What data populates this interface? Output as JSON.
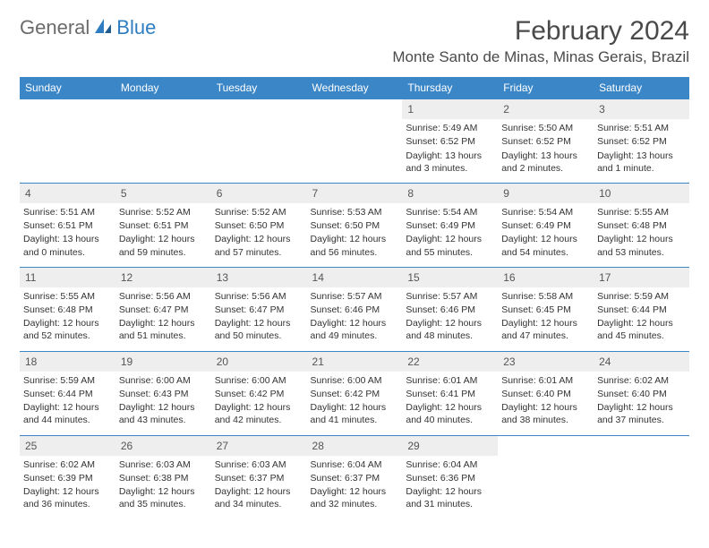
{
  "logo": {
    "text1": "General",
    "text2": "Blue"
  },
  "title": "February 2024",
  "location": "Monte Santo de Minas, Minas Gerais, Brazil",
  "colors": {
    "header_blue": "#3b86c7",
    "logo_blue": "#2f7dc0",
    "logo_grey": "#6b6b6b",
    "daynum_bg": "#eeeeee",
    "text": "#333333"
  },
  "day_headers": [
    "Sunday",
    "Monday",
    "Tuesday",
    "Wednesday",
    "Thursday",
    "Friday",
    "Saturday"
  ],
  "labels": {
    "sunrise": "Sunrise:",
    "sunset": "Sunset:",
    "daylight": "Daylight:"
  },
  "weeks": [
    [
      null,
      null,
      null,
      null,
      {
        "n": "1",
        "sr": "5:49 AM",
        "ss": "6:52 PM",
        "dl": "13 hours and 3 minutes."
      },
      {
        "n": "2",
        "sr": "5:50 AM",
        "ss": "6:52 PM",
        "dl": "13 hours and 2 minutes."
      },
      {
        "n": "3",
        "sr": "5:51 AM",
        "ss": "6:52 PM",
        "dl": "13 hours and 1 minute."
      }
    ],
    [
      {
        "n": "4",
        "sr": "5:51 AM",
        "ss": "6:51 PM",
        "dl": "13 hours and 0 minutes."
      },
      {
        "n": "5",
        "sr": "5:52 AM",
        "ss": "6:51 PM",
        "dl": "12 hours and 59 minutes."
      },
      {
        "n": "6",
        "sr": "5:52 AM",
        "ss": "6:50 PM",
        "dl": "12 hours and 57 minutes."
      },
      {
        "n": "7",
        "sr": "5:53 AM",
        "ss": "6:50 PM",
        "dl": "12 hours and 56 minutes."
      },
      {
        "n": "8",
        "sr": "5:54 AM",
        "ss": "6:49 PM",
        "dl": "12 hours and 55 minutes."
      },
      {
        "n": "9",
        "sr": "5:54 AM",
        "ss": "6:49 PM",
        "dl": "12 hours and 54 minutes."
      },
      {
        "n": "10",
        "sr": "5:55 AM",
        "ss": "6:48 PM",
        "dl": "12 hours and 53 minutes."
      }
    ],
    [
      {
        "n": "11",
        "sr": "5:55 AM",
        "ss": "6:48 PM",
        "dl": "12 hours and 52 minutes."
      },
      {
        "n": "12",
        "sr": "5:56 AM",
        "ss": "6:47 PM",
        "dl": "12 hours and 51 minutes."
      },
      {
        "n": "13",
        "sr": "5:56 AM",
        "ss": "6:47 PM",
        "dl": "12 hours and 50 minutes."
      },
      {
        "n": "14",
        "sr": "5:57 AM",
        "ss": "6:46 PM",
        "dl": "12 hours and 49 minutes."
      },
      {
        "n": "15",
        "sr": "5:57 AM",
        "ss": "6:46 PM",
        "dl": "12 hours and 48 minutes."
      },
      {
        "n": "16",
        "sr": "5:58 AM",
        "ss": "6:45 PM",
        "dl": "12 hours and 47 minutes."
      },
      {
        "n": "17",
        "sr": "5:59 AM",
        "ss": "6:44 PM",
        "dl": "12 hours and 45 minutes."
      }
    ],
    [
      {
        "n": "18",
        "sr": "5:59 AM",
        "ss": "6:44 PM",
        "dl": "12 hours and 44 minutes."
      },
      {
        "n": "19",
        "sr": "6:00 AM",
        "ss": "6:43 PM",
        "dl": "12 hours and 43 minutes."
      },
      {
        "n": "20",
        "sr": "6:00 AM",
        "ss": "6:42 PM",
        "dl": "12 hours and 42 minutes."
      },
      {
        "n": "21",
        "sr": "6:00 AM",
        "ss": "6:42 PM",
        "dl": "12 hours and 41 minutes."
      },
      {
        "n": "22",
        "sr": "6:01 AM",
        "ss": "6:41 PM",
        "dl": "12 hours and 40 minutes."
      },
      {
        "n": "23",
        "sr": "6:01 AM",
        "ss": "6:40 PM",
        "dl": "12 hours and 38 minutes."
      },
      {
        "n": "24",
        "sr": "6:02 AM",
        "ss": "6:40 PM",
        "dl": "12 hours and 37 minutes."
      }
    ],
    [
      {
        "n": "25",
        "sr": "6:02 AM",
        "ss": "6:39 PM",
        "dl": "12 hours and 36 minutes."
      },
      {
        "n": "26",
        "sr": "6:03 AM",
        "ss": "6:38 PM",
        "dl": "12 hours and 35 minutes."
      },
      {
        "n": "27",
        "sr": "6:03 AM",
        "ss": "6:37 PM",
        "dl": "12 hours and 34 minutes."
      },
      {
        "n": "28",
        "sr": "6:04 AM",
        "ss": "6:37 PM",
        "dl": "12 hours and 32 minutes."
      },
      {
        "n": "29",
        "sr": "6:04 AM",
        "ss": "6:36 PM",
        "dl": "12 hours and 31 minutes."
      },
      null,
      null
    ]
  ]
}
